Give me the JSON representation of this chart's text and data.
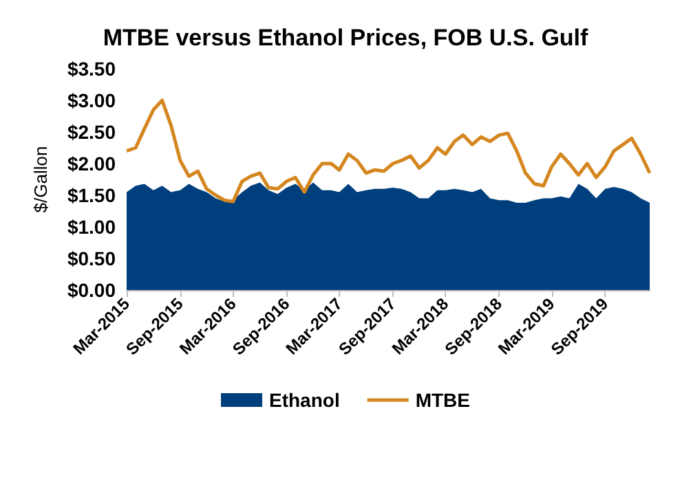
{
  "chart_data": {
    "type": "area",
    "title": "MTBE versus Ethanol Prices, FOB U.S. Gulf",
    "ylabel": "$/Gallon",
    "x": [
      "2015-03",
      "2015-04",
      "2015-05",
      "2015-06",
      "2015-07",
      "2015-08",
      "2015-09",
      "2015-10",
      "2015-11",
      "2015-12",
      "2016-01",
      "2016-02",
      "2016-03",
      "2016-04",
      "2016-05",
      "2016-06",
      "2016-07",
      "2016-08",
      "2016-09",
      "2016-10",
      "2016-11",
      "2016-12",
      "2017-01",
      "2017-02",
      "2017-03",
      "2017-04",
      "2017-05",
      "2017-06",
      "2017-07",
      "2017-08",
      "2017-09",
      "2017-10",
      "2017-11",
      "2017-12",
      "2018-01",
      "2018-02",
      "2018-03",
      "2018-04",
      "2018-05",
      "2018-06",
      "2018-07",
      "2018-08",
      "2018-09",
      "2018-10",
      "2018-11",
      "2018-12",
      "2019-01",
      "2019-02",
      "2019-03",
      "2019-04",
      "2019-05",
      "2019-06",
      "2019-07",
      "2019-08",
      "2019-09",
      "2019-10",
      "2019-11",
      "2019-12",
      "2020-01",
      "2020-02"
    ],
    "series": [
      {
        "name": "Ethanol",
        "color": "#003f7d",
        "values": [
          1.55,
          1.65,
          1.68,
          1.58,
          1.65,
          1.55,
          1.58,
          1.68,
          1.6,
          1.55,
          1.45,
          1.4,
          1.42,
          1.55,
          1.65,
          1.7,
          1.58,
          1.52,
          1.62,
          1.68,
          1.58,
          1.7,
          1.58,
          1.58,
          1.55,
          1.68,
          1.55,
          1.58,
          1.6,
          1.6,
          1.62,
          1.6,
          1.55,
          1.45,
          1.45,
          1.58,
          1.58,
          1.6,
          1.58,
          1.55,
          1.6,
          1.45,
          1.42,
          1.42,
          1.38,
          1.38,
          1.42,
          1.45,
          1.45,
          1.48,
          1.45,
          1.68,
          1.6,
          1.45,
          1.6,
          1.63,
          1.6,
          1.55,
          1.45,
          1.38
        ]
      },
      {
        "name": "MTBE",
        "type": "line",
        "color": "#d4861f",
        "values": [
          2.2,
          2.25,
          2.55,
          2.85,
          3.0,
          2.6,
          2.05,
          1.8,
          1.88,
          1.6,
          1.5,
          1.42,
          1.4,
          1.72,
          1.8,
          1.85,
          1.62,
          1.6,
          1.72,
          1.78,
          1.55,
          1.82,
          2.0,
          2.0,
          1.9,
          2.15,
          2.05,
          1.85,
          1.9,
          1.88,
          2.0,
          2.05,
          2.12,
          1.93,
          2.05,
          2.25,
          2.15,
          2.35,
          2.45,
          2.3,
          2.42,
          2.35,
          2.45,
          2.48,
          2.2,
          1.85,
          1.68,
          1.65,
          1.95,
          2.15,
          2.0,
          1.82,
          2.0,
          1.78,
          1.95,
          2.2,
          2.3,
          2.4,
          2.15,
          1.85
        ]
      }
    ],
    "xlim": [
      "2015-03",
      "2020-02"
    ],
    "xticks": [
      {
        "value": "2015-03",
        "label": "Mar-2015"
      },
      {
        "value": "2015-09",
        "label": "Sep-2015"
      },
      {
        "value": "2016-03",
        "label": "Mar-2016"
      },
      {
        "value": "2016-09",
        "label": "Sep-2016"
      },
      {
        "value": "2017-03",
        "label": "Mar-2017"
      },
      {
        "value": "2017-09",
        "label": "Sep-2017"
      },
      {
        "value": "2018-03",
        "label": "Mar-2018"
      },
      {
        "value": "2018-09",
        "label": "Sep-2018"
      },
      {
        "value": "2019-03",
        "label": "Mar-2019"
      },
      {
        "value": "2019-09",
        "label": "Sep-2019"
      }
    ],
    "ylim": [
      0,
      3.5
    ],
    "yticks": [
      {
        "value": 0,
        "label": "$0.00"
      },
      {
        "value": 0.5,
        "label": "$0.50"
      },
      {
        "value": 1,
        "label": "$1.00"
      },
      {
        "value": 1.5,
        "label": "$1.50"
      },
      {
        "value": 2,
        "label": "$2.00"
      },
      {
        "value": 2.5,
        "label": "$2.50"
      },
      {
        "value": 3,
        "label": "$3.00"
      },
      {
        "value": 3.5,
        "label": "$3.50"
      }
    ],
    "grid": false,
    "legend": "bottom",
    "marker": "none",
    "line_style": "solid"
  }
}
